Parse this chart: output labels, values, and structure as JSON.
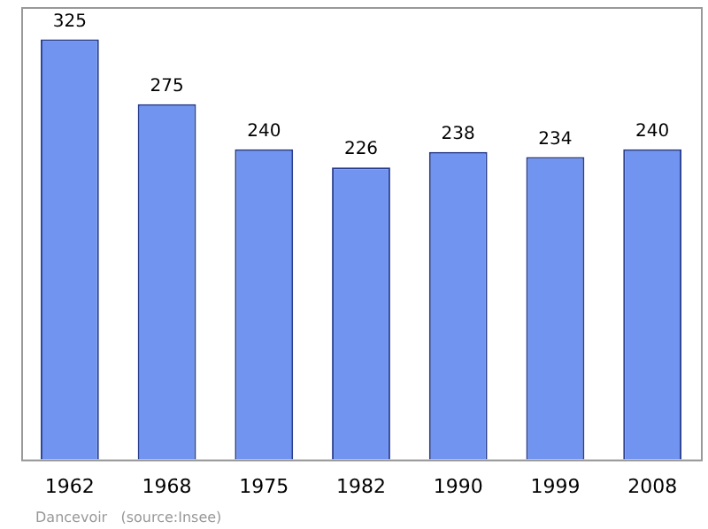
{
  "chart_data": {
    "type": "bar",
    "categories": [
      "1962",
      "1968",
      "1975",
      "1982",
      "1990",
      "1999",
      "2008"
    ],
    "values": [
      325,
      275,
      240,
      226,
      238,
      234,
      240
    ],
    "color": "#7094f0",
    "relative": false,
    "data_labels": true,
    "grid": false,
    "legend": false,
    "annotations": [
      "Dancevoir   (source:Insee)"
    ]
  }
}
